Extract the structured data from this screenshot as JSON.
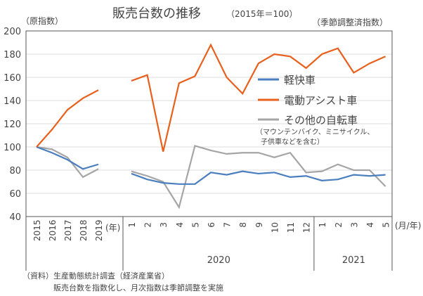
{
  "chart_data": {
    "type": "line",
    "title": "販売台数の推移",
    "subtitle": "（2015年＝100）",
    "left_axis_note": "（原指数）",
    "right_axis_note": "（季節調整済指数）",
    "ylim": [
      40,
      200
    ],
    "yticks": [
      40,
      60,
      80,
      100,
      120,
      140,
      160,
      180,
      200
    ],
    "grid": true,
    "annual": {
      "categories": [
        "2015",
        "2016",
        "2017",
        "2018",
        "2019"
      ],
      "unit_label": "(年)"
    },
    "monthly": {
      "categories": [
        "1",
        "2",
        "3",
        "4",
        "5",
        "6",
        "7",
        "8",
        "9",
        "10",
        "11",
        "12",
        "1",
        "2",
        "3",
        "4",
        "5"
      ],
      "unit_label": "(月/年)",
      "groups": [
        {
          "label": "2020",
          "count": 12
        },
        {
          "label": "2021",
          "count": 5
        }
      ]
    },
    "legend_position": "center-right",
    "series": [
      {
        "name": "軽快車",
        "color": "#4a7ebf",
        "annual": [
          100,
          95,
          89,
          81,
          85
        ],
        "monthly": [
          77,
          72,
          69,
          68,
          68,
          78,
          76,
          79,
          77,
          78,
          74,
          75,
          71,
          72,
          76,
          75,
          76
        ]
      },
      {
        "name": "電動アシスト車",
        "color": "#e8601c",
        "annual": [
          100,
          115,
          132,
          142,
          149
        ],
        "monthly": [
          157,
          162,
          96,
          155,
          161,
          188,
          160,
          146,
          172,
          180,
          178,
          168,
          180,
          185,
          164,
          172,
          178
        ]
      },
      {
        "name": "その他の自転車",
        "color": "#a5a5a5",
        "annual": [
          100,
          98,
          91,
          74,
          81
        ],
        "monthly": [
          79,
          75,
          70,
          48,
          101,
          97,
          94,
          95,
          95,
          91,
          95,
          78,
          79,
          85,
          80,
          80,
          66
        ]
      }
    ],
    "legend_note": [
      "（マウンテンバイク、ミニサイクル、",
      "子供車などを含む）"
    ],
    "source_notes": [
      "（資料）生産動態統計調査（経済産業省）",
      "　　　　販売台数を指数化し、月次指数は季節調整を実施"
    ]
  }
}
